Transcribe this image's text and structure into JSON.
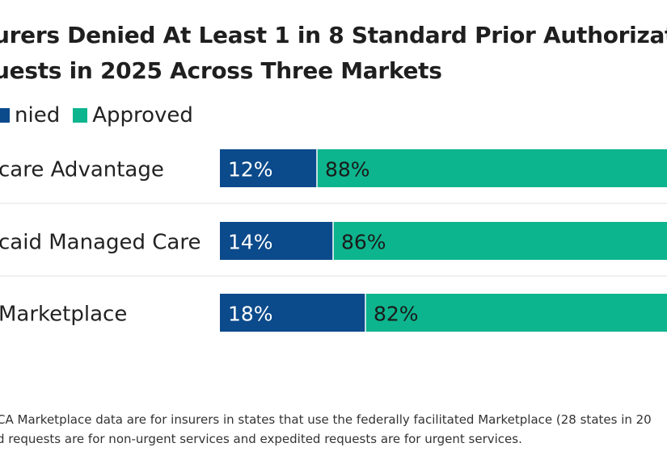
{
  "title_line1": "urers Denied At Least 1 in 8 Standard Prior Authorizat",
  "title_line2": "uests in 2025 Across Three Markets",
  "legend": [
    {
      "label": "nied",
      "color": "#0b4a8b"
    },
    {
      "label": "Approved",
      "color": "#0db58e"
    }
  ],
  "note_line1": "CA Marketplace data are for insurers in states that use the federally facilitated Marketplace (28 states in 20",
  "note_line2": "d requests are for non-urgent services and expedited requests are for urgent services.",
  "chart_data": {
    "type": "bar",
    "orientation": "horizontal",
    "stacked": true,
    "categories": [
      "care Advantage",
      "caid Managed Care",
      "Marketplace"
    ],
    "series": [
      {
        "name": "nied",
        "color": "#0b4a8b",
        "values": [
          12,
          14,
          18
        ],
        "labels": [
          "12%",
          "14%",
          "18%"
        ],
        "label_color": "#ffffff"
      },
      {
        "name": "Approved",
        "color": "#0db58e",
        "values": [
          88,
          86,
          82
        ],
        "labels": [
          "88%",
          "86%",
          "82%"
        ],
        "label_color": "#1a1a1a"
      }
    ],
    "xlim": [
      0,
      100
    ],
    "grid": false,
    "legend_position": "top-left"
  }
}
